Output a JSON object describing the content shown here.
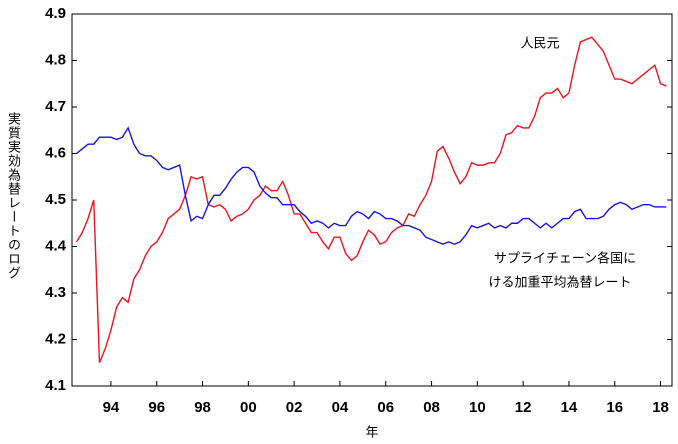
{
  "chart_data": {
    "type": "line",
    "y_label": "実質実効為替レートのログ",
    "x_label": "年",
    "annotations": [
      "人民元",
      "サプライチェーン各国に",
      "ける加重平均為替レート"
    ],
    "x": [
      1993,
      1993.25,
      1993.5,
      1993.75,
      1994,
      1994.25,
      1994.5,
      1994.75,
      1995,
      1995.25,
      1995.5,
      1995.75,
      1996,
      1996.25,
      1996.5,
      1996.75,
      1997,
      1997.25,
      1997.5,
      1997.75,
      1998,
      1998.25,
      1998.5,
      1998.75,
      1999,
      1999.25,
      1999.5,
      1999.75,
      2000,
      2000.25,
      2000.5,
      2000.75,
      2001,
      2001.25,
      2001.5,
      2001.75,
      2002,
      2002.25,
      2002.5,
      2002.75,
      2003,
      2003.25,
      2003.5,
      2003.75,
      2004,
      2004.25,
      2004.5,
      2004.75,
      2005,
      2005.25,
      2005.5,
      2005.75,
      2006,
      2006.25,
      2006.5,
      2006.75,
      2007,
      2007.25,
      2007.5,
      2007.75,
      2008,
      2008.25,
      2008.5,
      2008.75,
      2009,
      2009.25,
      2009.5,
      2009.75,
      2010,
      2010.25,
      2010.5,
      2010.75,
      2011,
      2011.25,
      2011.5,
      2011.75,
      2012,
      2012.25,
      2012.5,
      2012.75,
      2013,
      2013.25,
      2013.5,
      2013.75,
      2014,
      2014.25,
      2014.5,
      2014.75,
      2015,
      2015.25,
      2015.5,
      2015.75,
      2016,
      2016.25,
      2016.5,
      2016.75,
      2017,
      2017.25,
      2017.5,
      2017.75,
      2018,
      2018.25,
      2018.5,
      2018.75
    ],
    "series": [
      {
        "color": "#e8161e",
        "values": [
          4.41,
          4.43,
          4.46,
          4.5,
          4.15,
          4.18,
          4.22,
          4.27,
          4.29,
          4.28,
          4.33,
          4.35,
          4.38,
          4.4,
          4.41,
          4.43,
          4.46,
          4.47,
          4.48,
          4.51,
          4.55,
          4.545,
          4.55,
          4.49,
          4.485,
          4.49,
          4.48,
          4.455,
          4.465,
          4.47,
          4.48,
          4.5,
          4.51,
          4.53,
          4.52,
          4.52,
          4.54,
          4.51,
          4.47,
          4.47,
          4.45,
          4.43,
          4.43,
          4.41,
          4.395,
          4.42,
          4.42,
          4.385,
          4.37,
          4.38,
          4.41,
          4.435,
          4.425,
          4.405,
          4.41,
          4.43,
          4.44,
          4.445,
          4.47,
          4.465,
          4.49,
          4.51,
          4.54,
          4.605,
          4.615,
          4.59,
          4.56,
          4.535,
          4.55,
          4.58,
          4.575,
          4.575,
          4.58,
          4.58,
          4.6,
          4.64,
          4.645,
          4.66,
          4.655,
          4.655,
          4.68,
          4.72,
          4.73,
          4.73,
          4.74,
          4.72,
          4.73,
          4.79,
          4.84,
          4.845,
          4.85,
          4.835,
          4.82,
          4.79,
          4.76,
          4.76,
          4.755,
          4.75,
          4.76,
          4.77,
          4.78,
          4.79,
          4.75,
          4.745
        ]
      },
      {
        "color": "#1515e0",
        "values": [
          4.6,
          4.61,
          4.62,
          4.62,
          4.635,
          4.635,
          4.635,
          4.63,
          4.635,
          4.655,
          4.62,
          4.6,
          4.595,
          4.595,
          4.585,
          4.57,
          4.565,
          4.57,
          4.575,
          4.51,
          4.455,
          4.465,
          4.46,
          4.49,
          4.51,
          4.51,
          4.525,
          4.545,
          4.56,
          4.57,
          4.57,
          4.56,
          4.53,
          4.515,
          4.505,
          4.505,
          4.49,
          4.49,
          4.49,
          4.475,
          4.465,
          4.45,
          4.455,
          4.45,
          4.44,
          4.45,
          4.445,
          4.445,
          4.465,
          4.475,
          4.47,
          4.46,
          4.475,
          4.47,
          4.46,
          4.46,
          4.455,
          4.445,
          4.445,
          4.44,
          4.435,
          4.42,
          4.415,
          4.41,
          4.405,
          4.41,
          4.405,
          4.41,
          4.425,
          4.445,
          4.44,
          4.445,
          4.45,
          4.44,
          4.445,
          4.44,
          4.45,
          4.45,
          4.46,
          4.46,
          4.45,
          4.44,
          4.45,
          4.44,
          4.45,
          4.46,
          4.46,
          4.475,
          4.48,
          4.46,
          4.46,
          4.46,
          4.465,
          4.48,
          4.49,
          4.495,
          4.49,
          4.48,
          4.485,
          4.49,
          4.49,
          4.485,
          4.485,
          4.485
        ]
      }
    ],
    "xlim": [
      1992.8,
      2019
    ],
    "xticks": [
      {
        "value": 1994.5,
        "label": "94"
      },
      {
        "value": 1996.5,
        "label": "96"
      },
      {
        "value": 1998.5,
        "label": "98"
      },
      {
        "value": 2000.5,
        "label": "00"
      },
      {
        "value": 2002.5,
        "label": "02"
      },
      {
        "value": 2004.5,
        "label": "04"
      },
      {
        "value": 2006.5,
        "label": "06"
      },
      {
        "value": 2008.5,
        "label": "08"
      },
      {
        "value": 2010.5,
        "label": "10"
      },
      {
        "value": 2012.5,
        "label": "12"
      },
      {
        "value": 2014.5,
        "label": "14"
      },
      {
        "value": 2016.5,
        "label": "16"
      },
      {
        "value": 2018.5,
        "label": "18"
      }
    ],
    "ylim": [
      4.1,
      4.9
    ],
    "yticks": [
      4.1,
      4.2,
      4.3,
      4.4,
      4.5,
      4.6,
      4.7,
      4.8,
      4.9
    ]
  }
}
